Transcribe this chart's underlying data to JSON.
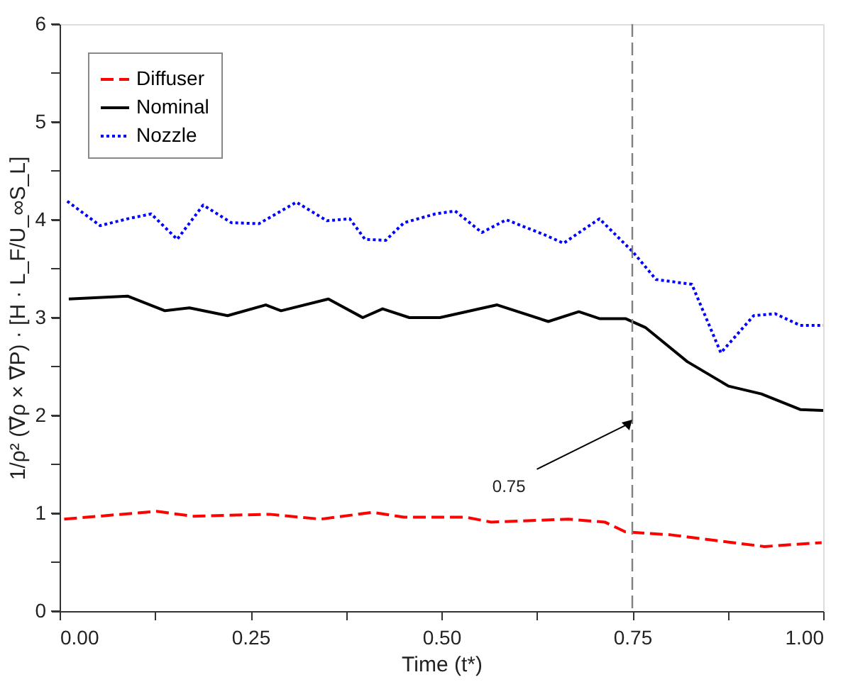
{
  "chart_data": {
    "type": "line",
    "xlabel": "Time (t*)",
    "ylabel": "1/ρ² (∇⃗ρ × ∇⃗P) · [H · L_F/U_∞S_L]",
    "xlim": [
      0,
      1
    ],
    "ylim": [
      0,
      6
    ],
    "xticks": [
      {
        "value": 0,
        "label": "0.00"
      },
      {
        "value": 0.125,
        "label": null
      },
      {
        "value": 0.25,
        "label": "0.25"
      },
      {
        "value": 0.375,
        "label": null
      },
      {
        "value": 0.5,
        "label": "0.50"
      },
      {
        "value": 0.625,
        "label": null
      },
      {
        "value": 0.75,
        "label": "0.75"
      },
      {
        "value": 0.875,
        "label": null
      },
      {
        "value": 1,
        "label": "1.00"
      }
    ],
    "yticks": [
      0,
      {
        "value": 0.5,
        "label": null
      },
      1,
      {
        "value": 1.5,
        "label": null
      },
      2,
      {
        "value": 2.5,
        "label": null
      },
      3,
      {
        "value": 3.5,
        "label": null
      },
      4,
      {
        "value": 4.5,
        "label": null
      },
      5,
      {
        "value": 5.5,
        "label": null
      },
      6
    ],
    "grid": false,
    "legend": "top left",
    "series": [
      {
        "name": "Diffuser",
        "color": "#ff0000",
        "line_style": "dashed",
        "x": [
          0.006,
          0.127,
          0.174,
          0.275,
          0.342,
          0.41,
          0.451,
          0.532,
          0.565,
          0.666,
          0.714,
          0.741,
          0.8,
          0.923,
          0.998
        ],
        "values": [
          0.94,
          1.02,
          0.97,
          0.99,
          0.94,
          1.01,
          0.96,
          0.96,
          0.91,
          0.94,
          0.91,
          0.81,
          0.78,
          0.66,
          0.7
        ]
      },
      {
        "name": "Nominal",
        "color": "#000000",
        "line_style": "solid",
        "x": [
          0.012,
          0.089,
          0.138,
          0.17,
          0.22,
          0.27,
          0.29,
          0.352,
          0.397,
          0.423,
          0.458,
          0.498,
          0.573,
          0.64,
          0.68,
          0.707,
          0.741,
          0.767,
          0.822,
          0.876,
          0.919,
          0.97,
          1.0
        ],
        "values": [
          3.19,
          3.22,
          3.07,
          3.1,
          3.02,
          3.13,
          3.07,
          3.19,
          3.0,
          3.09,
          3.0,
          3.0,
          3.13,
          2.96,
          3.06,
          2.99,
          2.99,
          2.9,
          2.55,
          2.3,
          2.22,
          2.06,
          2.05
        ]
      },
      {
        "name": "Nozzle",
        "color": "#0000ff",
        "line_style": "dotted",
        "x": [
          0.01,
          0.053,
          0.089,
          0.12,
          0.154,
          0.188,
          0.225,
          0.261,
          0.31,
          0.35,
          0.38,
          0.4,
          0.427,
          0.451,
          0.492,
          0.518,
          0.553,
          0.585,
          0.634,
          0.66,
          0.707,
          0.751,
          0.781,
          0.828,
          0.866,
          0.909,
          0.937,
          0.97,
          1.0
        ],
        "values": [
          4.19,
          3.94,
          4.01,
          4.06,
          3.8,
          4.15,
          3.97,
          3.96,
          4.18,
          3.99,
          4.01,
          3.8,
          3.79,
          3.97,
          4.06,
          4.09,
          3.87,
          4.0,
          3.85,
          3.76,
          4.01,
          3.67,
          3.39,
          3.34,
          2.64,
          3.02,
          3.04,
          2.92,
          2.92
        ]
      }
    ],
    "ref_lines": [
      {
        "axis": "x",
        "value": 0.75,
        "color": "#808080",
        "line_style": "dashed"
      }
    ],
    "annotations": [
      {
        "text": "0.75",
        "x": 0.75,
        "y": 1.95
      }
    ]
  }
}
